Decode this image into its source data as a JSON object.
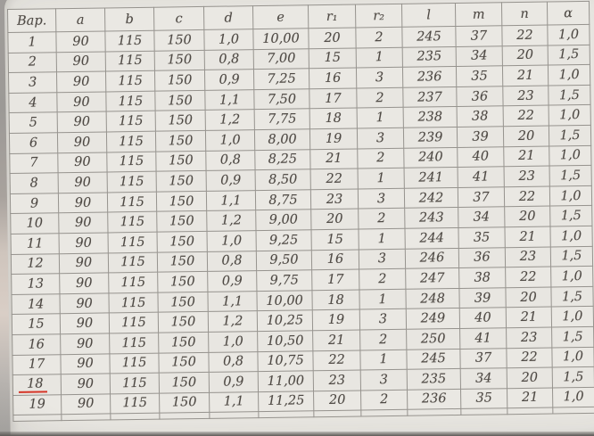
{
  "photo": {
    "description": "photograph of a printed variants table on paper",
    "paper_color": "#e9e7e2",
    "background_color": "#aeacaa",
    "grid_color": "#96938e",
    "text_color": "#4e4944",
    "highlight_color": "#d63426"
  },
  "table": {
    "columns": [
      "Вар.",
      "a",
      "b",
      "c",
      "d",
      "e",
      "r₁",
      "r₂",
      "l",
      "m",
      "n",
      "α"
    ],
    "rows": [
      [
        "1",
        "90",
        "115",
        "150",
        "1,0",
        "10,00",
        "20",
        "2",
        "245",
        "37",
        "22",
        "1,0"
      ],
      [
        "2",
        "90",
        "115",
        "150",
        "0,8",
        "7,00",
        "15",
        "1",
        "235",
        "34",
        "20",
        "1,5"
      ],
      [
        "3",
        "90",
        "115",
        "150",
        "0,9",
        "7,25",
        "16",
        "3",
        "236",
        "35",
        "21",
        "1,0"
      ],
      [
        "4",
        "90",
        "115",
        "150",
        "1,1",
        "7,50",
        "17",
        "2",
        "237",
        "36",
        "23",
        "1,5"
      ],
      [
        "5",
        "90",
        "115",
        "150",
        "1,2",
        "7,75",
        "18",
        "1",
        "238",
        "38",
        "22",
        "1,0"
      ],
      [
        "6",
        "90",
        "115",
        "150",
        "1,0",
        "8,00",
        "19",
        "3",
        "239",
        "39",
        "20",
        "1,5"
      ],
      [
        "7",
        "90",
        "115",
        "150",
        "0,8",
        "8,25",
        "21",
        "2",
        "240",
        "40",
        "21",
        "1,0"
      ],
      [
        "8",
        "90",
        "115",
        "150",
        "0,9",
        "8,50",
        "22",
        "1",
        "241",
        "41",
        "23",
        "1,5"
      ],
      [
        "9",
        "90",
        "115",
        "150",
        "1,1",
        "8,75",
        "23",
        "3",
        "242",
        "37",
        "22",
        "1,0"
      ],
      [
        "10",
        "90",
        "115",
        "150",
        "1,2",
        "9,00",
        "20",
        "2",
        "243",
        "34",
        "20",
        "1,5"
      ],
      [
        "11",
        "90",
        "115",
        "150",
        "1,0",
        "9,25",
        "15",
        "1",
        "244",
        "35",
        "21",
        "1,0"
      ],
      [
        "12",
        "90",
        "115",
        "150",
        "0,8",
        "9,50",
        "16",
        "3",
        "246",
        "36",
        "23",
        "1,5"
      ],
      [
        "13",
        "90",
        "115",
        "150",
        "0,9",
        "9,75",
        "17",
        "2",
        "247",
        "38",
        "22",
        "1,0"
      ],
      [
        "14",
        "90",
        "115",
        "150",
        "1,1",
        "10,00",
        "18",
        "1",
        "248",
        "39",
        "20",
        "1,5"
      ],
      [
        "15",
        "90",
        "115",
        "150",
        "1,2",
        "10,25",
        "19",
        "3",
        "249",
        "40",
        "21",
        "1,0"
      ],
      [
        "16",
        "90",
        "115",
        "150",
        "1,0",
        "10,50",
        "21",
        "2",
        "250",
        "41",
        "23",
        "1,5"
      ],
      [
        "17",
        "90",
        "115",
        "150",
        "0,8",
        "10,75",
        "22",
        "1",
        "245",
        "37",
        "22",
        "1,0"
      ],
      [
        "18",
        "90",
        "115",
        "150",
        "0,9",
        "11,00",
        "23",
        "3",
        "235",
        "34",
        "20",
        "1,5"
      ],
      [
        "19",
        "90",
        "115",
        "150",
        "1,1",
        "11,25",
        "20",
        "2",
        "236",
        "35",
        "21",
        "1,0"
      ]
    ],
    "highlighted_variant": "18"
  }
}
